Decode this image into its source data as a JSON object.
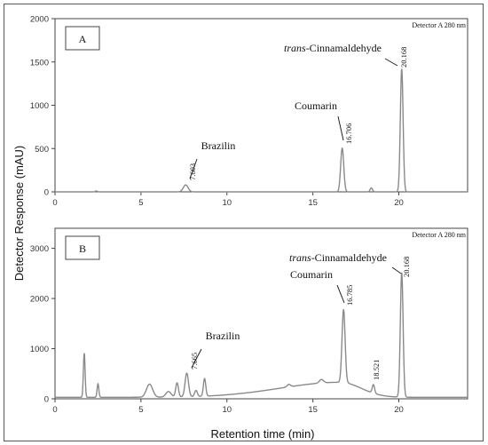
{
  "page": {
    "ylabel": "Detector Response (mAU)",
    "xlabel": "Retention time (min)"
  },
  "chart_data": [
    {
      "type": "line",
      "panel_label": "A",
      "detector_label": "Detector A 280 nm",
      "xlim": [
        0,
        24
      ],
      "ylim": [
        0,
        2000
      ],
      "x_ticks": [
        0,
        5,
        10,
        15,
        20
      ],
      "y_ticks": [
        0,
        500,
        1000,
        1500,
        2000
      ],
      "baseline": 0,
      "line_color": "#8a8a8a",
      "peaks": [
        {
          "rt": 2.4,
          "height": 10,
          "width": 0.06
        },
        {
          "rt": 7.603,
          "height": 80,
          "width": 0.14
        },
        {
          "rt": 16.706,
          "height": 505,
          "width": 0.09
        },
        {
          "rt": 18.4,
          "height": 45,
          "width": 0.07
        },
        {
          "rt": 20.168,
          "height": 1420,
          "width": 0.08
        }
      ],
      "annotations": [
        {
          "name": "Brazilin",
          "rt_label": "7.603",
          "rt": 7.603
        },
        {
          "name": "Coumarin",
          "rt_label": "16.706",
          "rt": 16.706
        },
        {
          "name_prefix": "trans",
          "name_suffix": "-Cinnamaldehyde",
          "rt_label": "20.168",
          "rt": 20.168
        }
      ]
    },
    {
      "type": "line",
      "panel_label": "B",
      "detector_label": "Detector A 280 nm",
      "xlim": [
        0,
        24
      ],
      "ylim": [
        0,
        3400
      ],
      "x_ticks": [
        0,
        5,
        10,
        15,
        20
      ],
      "y_ticks": [
        0,
        1000,
        2000,
        3000
      ],
      "baseline": 30,
      "line_color": "#8a8a8a",
      "hump": {
        "center": 16.6,
        "height": 300,
        "width_left": 3.5,
        "width_right": 1.2
      },
      "peaks": [
        {
          "rt": 1.7,
          "height": 880,
          "width": 0.05
        },
        {
          "rt": 2.5,
          "height": 270,
          "width": 0.05
        },
        {
          "rt": 5.5,
          "height": 260,
          "width": 0.18
        },
        {
          "rt": 6.6,
          "height": 110,
          "width": 0.15
        },
        {
          "rt": 7.1,
          "height": 280,
          "width": 0.08
        },
        {
          "rt": 7.665,
          "height": 470,
          "width": 0.1
        },
        {
          "rt": 8.2,
          "height": 120,
          "width": 0.08
        },
        {
          "rt": 8.7,
          "height": 350,
          "width": 0.07
        },
        {
          "rt": 13.6,
          "height": 50,
          "width": 0.1
        },
        {
          "rt": 15.5,
          "height": 70,
          "width": 0.12
        },
        {
          "rt": 16.785,
          "height": 1450,
          "width": 0.09
        },
        {
          "rt": 18.521,
          "height": 170,
          "width": 0.07
        },
        {
          "rt": 20.168,
          "height": 2480,
          "width": 0.08
        }
      ],
      "annotations": [
        {
          "name": "Brazilin",
          "rt_label": "7.665",
          "rt": 7.665
        },
        {
          "name": "Coumarin",
          "rt_label": "16.785",
          "rt": 16.785
        },
        {
          "rt_label": "18.521",
          "rt": 18.521
        },
        {
          "name_prefix": "trans",
          "name_suffix": "-Cinnamaldehyde",
          "rt_label": "20.168",
          "rt": 20.168
        }
      ]
    }
  ]
}
